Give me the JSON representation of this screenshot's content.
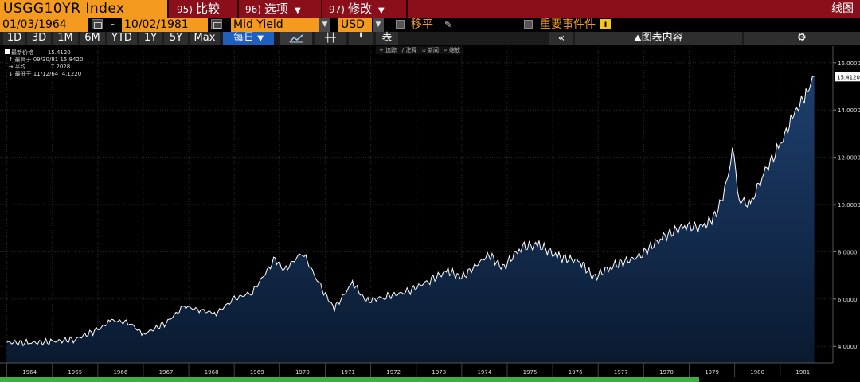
{
  "header": {
    "ticker": "USGG10YR Index",
    "menus": [
      {
        "num": "95)",
        "label": "比较"
      },
      {
        "num": "96)",
        "label": "选项"
      },
      {
        "num": "97)",
        "label": "修改"
      }
    ],
    "view_label": "线图"
  },
  "settings": {
    "start_date": "01/03/1964",
    "end_date": "10/02/1981",
    "date_separator": "-",
    "field": "Mid Yield",
    "currency": "USD",
    "move_label": "移平",
    "events_label": "重要事件件",
    "info_icon": "i"
  },
  "range_bar": {
    "ranges": [
      "1D",
      "3D",
      "1M",
      "6M",
      "YTD",
      "1Y",
      "5Y",
      "Max"
    ],
    "frequency": "每日",
    "table_label": "表",
    "collapse": "«",
    "chart_content": "图表内容",
    "gear": "⚙"
  },
  "mini_toolbar": [
    "追踪",
    "注释",
    "新闻",
    "缩放"
  ],
  "legend": {
    "last_label": "最新价格",
    "last_value": "15.4120",
    "high_label": "最高于 09/30/81",
    "high_value": "15.8420",
    "avg_label": "平均",
    "avg_value": "7.2028",
    "low_label": "最低于 11/12/64",
    "low_value": "4.1220"
  },
  "colors": {
    "accent": "#f39a1f",
    "header_red": "#8a0f1a",
    "area_top": "#1d3f6e",
    "area_bottom": "#0a1a30",
    "line": "#ffffff",
    "progress": "#3cb043"
  },
  "chart_data": {
    "type": "area",
    "x_ticks": [
      "1964",
      "1965",
      "1966",
      "1967",
      "1968",
      "1969",
      "1970",
      "1971",
      "1972",
      "1973",
      "1974",
      "1975",
      "1976",
      "1977",
      "1978",
      "1979",
      "1980",
      "1981"
    ],
    "y_ticks": [
      "4.0000",
      "6.0000",
      "8.0000",
      "10.0000",
      "12.0000",
      "14.0000",
      "16.0000"
    ],
    "ylim": [
      3.3,
      16.7
    ],
    "last_value_label": "15.4120",
    "series": [
      {
        "x": [
          1964.0,
          1964.5,
          1965.0,
          1965.5,
          1966.0,
          1966.3,
          1966.7,
          1967.0,
          1967.5,
          1967.9,
          1968.3,
          1968.6,
          1969.0,
          1969.4,
          1969.9,
          1970.1,
          1970.5,
          1970.9,
          1971.2,
          1971.6,
          1971.9,
          1972.3,
          1972.8,
          1973.3,
          1973.7,
          1974.0,
          1974.6,
          1974.9,
          1975.3,
          1975.7,
          1976.1,
          1976.6,
          1976.9,
          1977.3,
          1977.9,
          1978.4,
          1978.9,
          1979.3,
          1979.6,
          1979.85,
          1979.95,
          1980.1,
          1980.35,
          1980.6,
          1981.0,
          1981.3,
          1981.6,
          1981.75
        ],
        "values": [
          4.17,
          4.15,
          4.2,
          4.3,
          4.7,
          5.1,
          5.0,
          4.5,
          5.0,
          5.7,
          5.5,
          5.4,
          6.0,
          6.3,
          7.7,
          7.2,
          8.0,
          6.5,
          5.6,
          6.7,
          5.9,
          6.1,
          6.3,
          6.8,
          7.2,
          6.9,
          7.9,
          7.3,
          8.2,
          8.3,
          7.8,
          7.6,
          6.9,
          7.4,
          7.8,
          8.6,
          9.1,
          9.0,
          9.6,
          11.0,
          12.5,
          10.2,
          10.0,
          11.2,
          12.5,
          13.8,
          14.8,
          15.41
        ]
      }
    ]
  }
}
